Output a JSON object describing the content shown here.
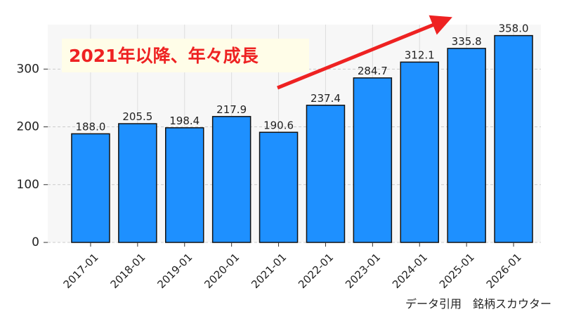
{
  "chart_data": {
    "type": "bar",
    "annotation": "2021年以降、年々成長",
    "footer": "データ引用　銘柄スカウター",
    "categories": [
      "2017-01",
      "2018-01",
      "2019-01",
      "2020-01",
      "2021-01",
      "2022-01",
      "2023-01",
      "2024-01",
      "2025-01",
      "2026-01"
    ],
    "values": [
      188.0,
      205.5,
      198.4,
      217.9,
      190.6,
      237.4,
      284.7,
      312.1,
      335.8,
      358.0
    ],
    "value_labels": [
      "188.0",
      "205.5",
      "198.4",
      "217.9",
      "190.6",
      "237.4",
      "284.7",
      "312.1",
      "335.8",
      "358.0"
    ],
    "color": "#1e90ff",
    "ylim": [
      0,
      377
    ],
    "yticks": [
      0,
      100,
      200,
      300
    ],
    "grid": true
  }
}
